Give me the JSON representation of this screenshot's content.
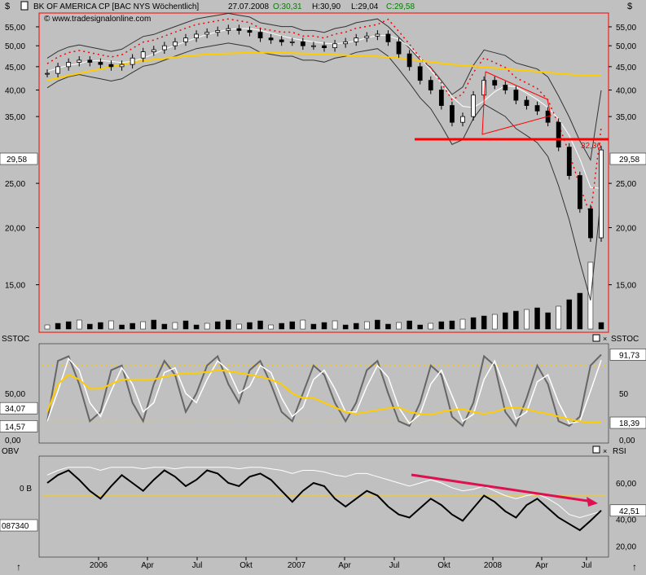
{
  "header": {
    "dollar_left": "$",
    "symbol_icon": "instrument-icon",
    "name": "BK OF AMERICA CP [BAC NYS  Wöchentlich]",
    "date": "27.07.2008",
    "open_label": "O:30,31",
    "high_label": "H:30,90",
    "low_label": "L:29,04",
    "close_label": "C:29,58",
    "dollar_right": "$",
    "watermark": "© www.tradesignalonline.com"
  },
  "colors": {
    "background": "#c0c0c0",
    "panel": "#c0c0c0",
    "frame": "#ff0000",
    "ma_yellow": "#ffcc00",
    "trend_red": "#ff0000",
    "arrow_red": "#e01050",
    "white_line": "#ffffff",
    "open_green": "#008000",
    "close_green": "#008000"
  },
  "chart_data": [
    {
      "type": "line",
      "panel": "price",
      "y_ticks": [
        55,
        50,
        45,
        40,
        35,
        25,
        20,
        15
      ],
      "y_tick_labels": [
        "55,00",
        "50,00",
        "45,00",
        "40,00",
        "35,00",
        "25,00",
        "20,00",
        "15,00"
      ],
      "ylim": [
        12,
        58
      ],
      "last_price_label": "29,58",
      "last_price": 29.58,
      "resistance_level": 32.36,
      "resistance_label": "32,36",
      "x_ticks": [
        "2006",
        "Apr",
        "Jul",
        "Okt",
        "2007",
        "Apr",
        "Jul",
        "Okt",
        "2008",
        "Apr",
        "Jul"
      ],
      "series": [
        {
          "values": [
            43.5,
            45,
            46,
            46.5,
            46,
            45.5,
            45,
            45.5,
            47,
            48.5,
            49,
            50,
            51,
            52,
            53,
            53.5,
            54,
            54.5,
            54,
            53.5,
            52,
            51.5,
            51,
            51,
            50,
            50,
            49.5,
            50.5,
            51,
            52,
            52.5,
            53,
            51,
            48,
            45,
            42,
            40,
            37,
            34,
            35,
            39,
            42,
            41,
            40,
            38,
            37,
            36,
            34,
            30,
            26,
            22,
            19,
            29.58
          ]
        },
        {
          "values": [
            42,
            42.5,
            43,
            43.5,
            44,
            44.5,
            45,
            45.5,
            46,
            46.3,
            46.6,
            46.9,
            47.2,
            47.5,
            47.7,
            47.9,
            48,
            48.1,
            48.2,
            48.3,
            48.3,
            48.3,
            48.3,
            48.2,
            48.1,
            48,
            47.9,
            47.8,
            47.7,
            47.6,
            47.5,
            47.4,
            47.2,
            47,
            46.7,
            46.4,
            46.1,
            45.8,
            45.5,
            45.3,
            45.1,
            44.9,
            44.7,
            44.5,
            44.3,
            44.1,
            43.9,
            43.7,
            43.5,
            43.3,
            43.1,
            43,
            43
          ]
        }
      ]
    },
    {
      "type": "line",
      "panel": "stochastic",
      "label": "SSTOC",
      "right_labels": [
        "91,73",
        "50",
        "18,39",
        "0,00"
      ],
      "left_labels": [
        "50,00",
        "34,07",
        "14,57",
        "0,00"
      ],
      "ylim": [
        0,
        100
      ],
      "series": [
        {
          "values": [
            20,
            85,
            90,
            60,
            20,
            30,
            75,
            80,
            40,
            20,
            60,
            85,
            70,
            30,
            50,
            80,
            90,
            60,
            40,
            75,
            85,
            60,
            30,
            20,
            50,
            80,
            70,
            40,
            20,
            40,
            75,
            85,
            50,
            20,
            15,
            40,
            80,
            70,
            25,
            15,
            40,
            90,
            80,
            30,
            15,
            45,
            80,
            60,
            20,
            15,
            25,
            80,
            91.73
          ]
        },
        {
          "values": [
            30,
            60,
            70,
            65,
            55,
            55,
            60,
            65,
            65,
            65,
            65,
            68,
            70,
            72,
            72,
            73,
            75,
            74,
            72,
            70,
            68,
            65,
            60,
            50,
            45,
            45,
            40,
            35,
            30,
            28,
            30,
            32,
            34,
            35,
            30,
            28,
            27,
            30,
            32,
            33,
            30,
            28,
            30,
            34,
            35,
            33,
            30,
            28,
            25,
            22,
            20,
            18.39,
            18.39
          ]
        }
      ]
    },
    {
      "type": "line",
      "panel": "obv_rsi",
      "labels_left": [
        "OBV",
        "0 B",
        "087340"
      ],
      "labels_right": [
        "RSI",
        "60,00",
        "42,51",
        "40,00",
        "20,00"
      ],
      "ylim": [
        15,
        75
      ],
      "series": [
        {
          "values": [
            60,
            65,
            68,
            62,
            55,
            50,
            58,
            65,
            60,
            55,
            62,
            68,
            64,
            58,
            62,
            68,
            66,
            60,
            58,
            64,
            66,
            62,
            55,
            48,
            55,
            60,
            58,
            50,
            45,
            50,
            55,
            52,
            45,
            40,
            38,
            44,
            50,
            46,
            40,
            36,
            44,
            52,
            48,
            42,
            38,
            46,
            50,
            44,
            38,
            34,
            30,
            36,
            42.51
          ]
        },
        {
          "values": [
            65,
            68,
            70,
            70,
            70,
            68,
            70,
            70,
            70,
            69,
            70,
            70,
            69,
            70,
            70,
            70,
            70,
            70,
            69,
            70,
            70,
            69,
            68,
            66,
            68,
            68,
            67,
            65,
            64,
            66,
            66,
            64,
            62,
            60,
            58,
            60,
            62,
            60,
            57,
            55,
            56,
            58,
            55,
            52,
            50,
            52,
            53,
            50,
            46,
            40,
            38,
            40,
            42
          ]
        }
      ]
    }
  ]
}
